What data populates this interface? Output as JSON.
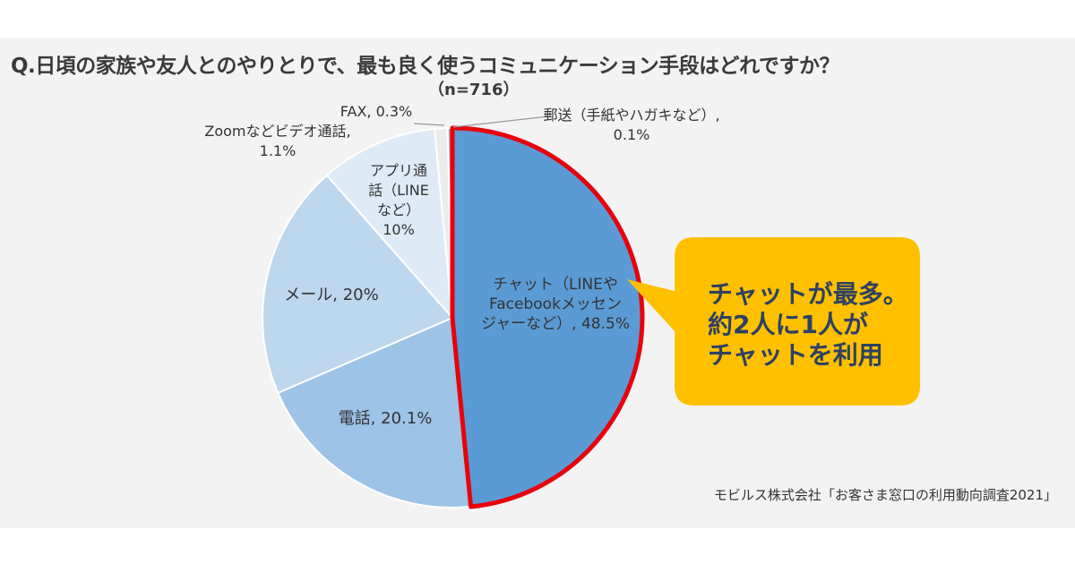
{
  "title": "Q.日頃の家族や友人とのやりとりで、最も良く使うコミュニケーション手段はどれですか？",
  "sample": "（n=716）",
  "callout": {
    "lines": [
      "チャットが最多。",
      "約2人に1人が",
      "チャットを利用"
    ],
    "color": "#ffc000"
  },
  "source": "モビルス株式会社「お客さま窓口の利用動向調査2021」",
  "chart_data": {
    "type": "pie",
    "title": "Q.日頃の家族や友人とのやりとりで、最も良く使うコミュニケーション手段はどれですか？",
    "start": "12 o'clock, clockwise",
    "slices": [
      {
        "name": "チャット（LINEやFacebookメッセンジャーなど）",
        "value": 48.5,
        "label_lines": [
          "チャット（LINEや",
          "Facebookメッセン",
          "ジャーなど）, 48.5%"
        ],
        "color": "#5b9bd5",
        "highlight": "#e8000b"
      },
      {
        "name": "電話",
        "value": 20.1,
        "label_lines": [
          "電話, 20.1%"
        ],
        "color": "#9dc3e6"
      },
      {
        "name": "メール",
        "value": 20,
        "label_lines": [
          "メール, 20%"
        ],
        "color": "#bdd7ee"
      },
      {
        "name": "アプリ通話（LINEなど）",
        "value": 10,
        "label_lines": [
          "アプリ通",
          "話（LINE",
          "など）",
          "10%"
        ],
        "color": "#deebf7"
      },
      {
        "name": "Zoomなどビデオ通話",
        "value": 1.1,
        "label_lines": [
          "Zoomなどビデオ通話,",
          "1.1%"
        ],
        "color": "#ececec"
      },
      {
        "name": "FAX",
        "value": 0.3,
        "label_lines": [
          "FAX, 0.3%"
        ],
        "color": "#a5a5a5"
      },
      {
        "name": "郵送（手紙やハガキなど）",
        "value": 0.1,
        "label_lines": [
          "郵送（手紙やハガキなど）,",
          "0.1%"
        ],
        "color": "#2e75b6"
      }
    ]
  }
}
